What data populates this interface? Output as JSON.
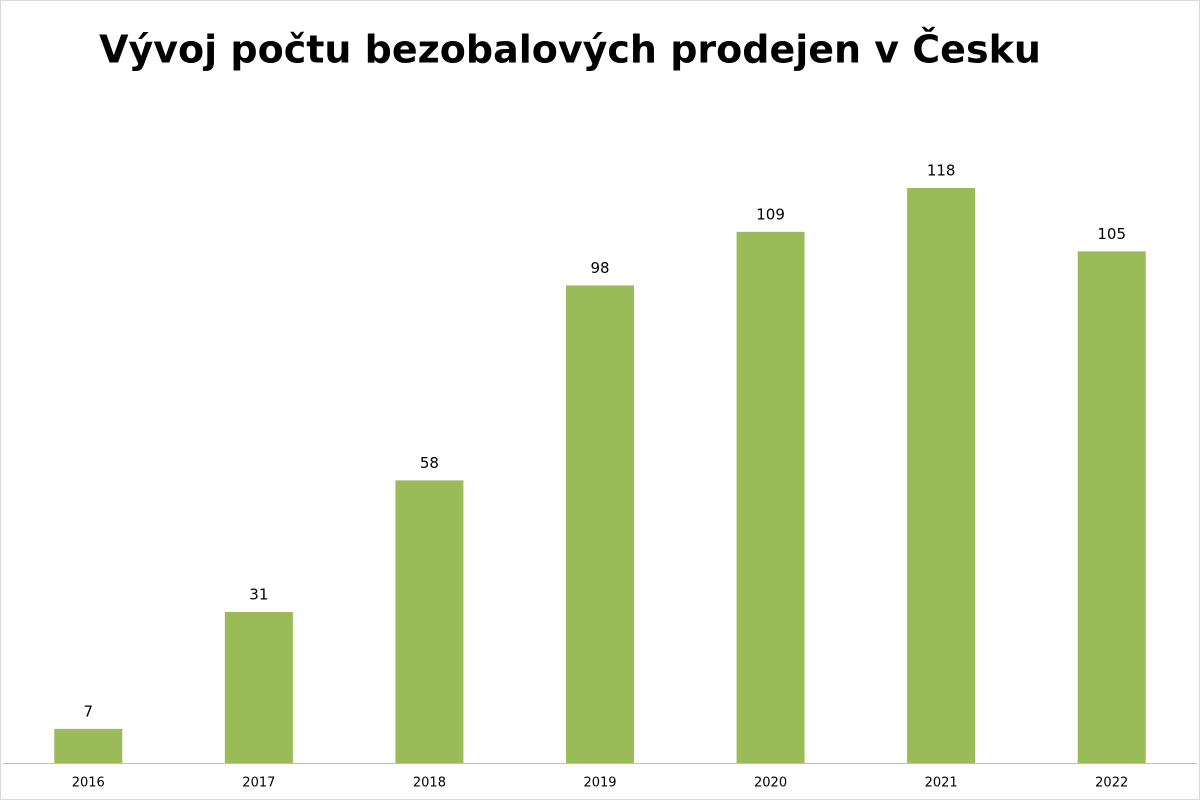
{
  "chart_data": {
    "type": "bar",
    "title": "Vývoj počtu bezobalových prodejen v Česku",
    "categories": [
      "2016",
      "2017",
      "2018",
      "2019",
      "2020",
      "2021",
      "2022"
    ],
    "values": [
      7,
      31,
      58,
      98,
      109,
      118,
      105
    ],
    "color": "#9bbb59"
  }
}
